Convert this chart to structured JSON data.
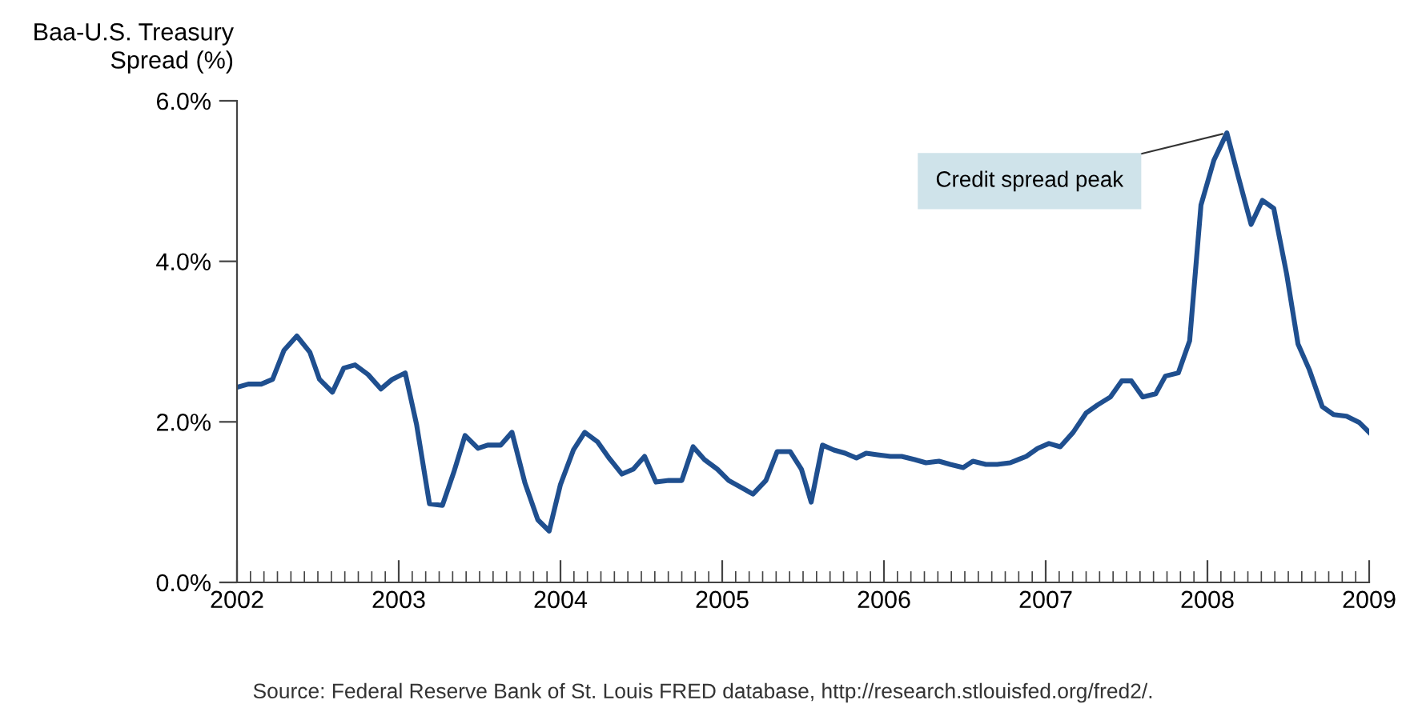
{
  "chart_data": {
    "type": "line",
    "ylabel": "Baa-U.S. Treasury\nSpread (%)",
    "x": [
      2002.0,
      2002.07,
      2002.15,
      2002.22,
      2002.29,
      2002.37,
      2002.45,
      2002.51,
      2002.59,
      2002.66,
      2002.73,
      2002.81,
      2002.89,
      2002.96,
      2003.04,
      2003.11,
      2003.19,
      2003.27,
      2003.34,
      2003.41,
      2003.49,
      2003.55,
      2003.63,
      2003.7,
      2003.78,
      2003.86,
      2003.93,
      2004.0,
      2004.08,
      2004.15,
      2004.23,
      2004.3,
      2004.38,
      2004.45,
      2004.52,
      2004.59,
      2004.67,
      2004.75,
      2004.82,
      2004.89,
      2004.97,
      2005.04,
      2005.12,
      2005.19,
      2005.27,
      2005.34,
      2005.42,
      2005.49,
      2005.55,
      2005.62,
      2005.69,
      2005.76,
      2005.83,
      2005.89,
      2005.96,
      2006.04,
      2006.11,
      2006.19,
      2006.26,
      2006.34,
      2006.41,
      2006.49,
      2006.55,
      2006.63,
      2006.7,
      2006.78,
      2006.88,
      2006.95,
      2007.02,
      2007.09,
      2007.17,
      2007.25,
      2007.32,
      2007.4,
      2007.47,
      2007.53,
      2007.6,
      2007.68,
      2007.74,
      2007.82,
      2007.89,
      2007.96,
      2008.04,
      2008.12,
      2008.19,
      2008.27,
      2008.34,
      2008.41,
      2008.49,
      2008.56,
      2008.63,
      2008.71,
      2008.78,
      2008.86,
      2008.94,
      2009.0
    ],
    "series": [
      {
        "color": "#1f4f8f",
        "values": [
          2.43,
          2.47,
          2.47,
          2.53,
          2.89,
          3.07,
          2.87,
          2.53,
          2.37,
          2.67,
          2.71,
          2.59,
          2.41,
          2.53,
          2.61,
          1.97,
          0.98,
          0.96,
          1.37,
          1.83,
          1.67,
          1.71,
          1.71,
          1.87,
          1.24,
          0.78,
          0.64,
          1.22,
          1.65,
          1.87,
          1.75,
          1.55,
          1.35,
          1.41,
          1.57,
          1.25,
          1.27,
          1.27,
          1.69,
          1.53,
          1.41,
          1.27,
          1.18,
          1.1,
          1.27,
          1.63,
          1.63,
          1.41,
          1.0,
          1.71,
          1.65,
          1.61,
          1.55,
          1.61,
          1.59,
          1.57,
          1.57,
          1.53,
          1.49,
          1.51,
          1.47,
          1.43,
          1.51,
          1.47,
          1.47,
          1.49,
          1.57,
          1.67,
          1.73,
          1.69,
          1.87,
          2.11,
          2.21,
          2.31,
          2.51,
          2.51,
          2.31,
          2.35,
          2.57,
          2.61,
          3.01,
          4.7,
          5.26,
          5.6,
          5.06,
          4.46,
          4.76,
          4.66,
          3.84,
          2.97,
          2.65,
          2.19,
          2.09,
          2.07,
          1.99,
          1.87
        ]
      }
    ],
    "xlim": [
      2002,
      2009
    ],
    "xticks": [
      2002,
      2003,
      2004,
      2005,
      2006,
      2007,
      2008,
      2009
    ],
    "ylim": [
      0,
      6
    ],
    "yticks": [
      {
        "value": 0,
        "label": "0.0%"
      },
      {
        "value": 2,
        "label": "2.0%"
      },
      {
        "value": 4,
        "label": "4.0%"
      },
      {
        "value": 6,
        "label": "6.0%"
      }
    ],
    "marker": "none",
    "line_style": "solid",
    "annotations": [
      {
        "text": "Credit spread peak",
        "x": 2008.12,
        "y": 5.6
      },
      "Source: Federal Reserve Bank of St. Louis FRED database, http://research.stlouisfed.org/fred2/."
    ]
  }
}
